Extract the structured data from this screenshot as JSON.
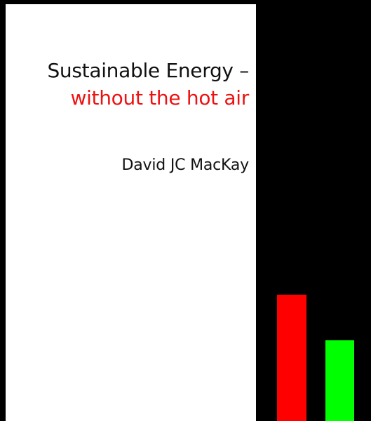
{
  "cover": {
    "title": "Sustainable Energy –",
    "subtitle": "without the hot air",
    "author": "David JC MacKay"
  },
  "colors": {
    "background_left": "#ffffff",
    "background_right": "#000000",
    "title_color": "#111111",
    "subtitle_color": "#ee1111",
    "bar_red": "#ff0000",
    "bar_green": "#00ff00"
  },
  "bars": [
    {
      "name": "red",
      "relative_level": 1.0
    },
    {
      "name": "green",
      "relative_level": 0.64
    }
  ]
}
